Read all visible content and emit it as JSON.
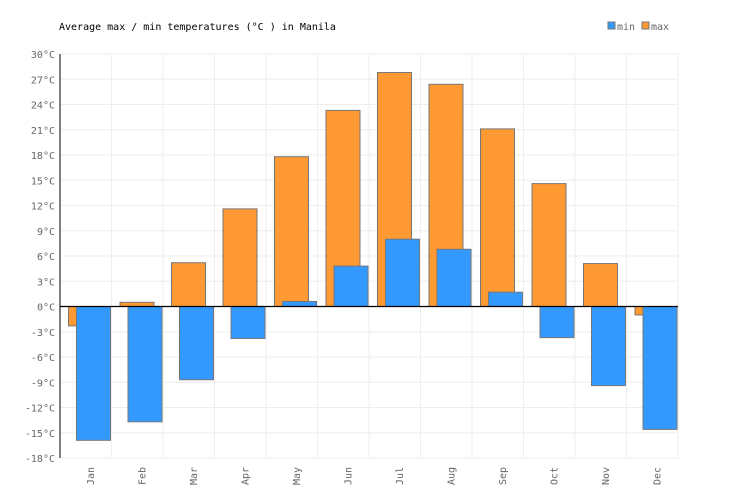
{
  "chart_data": {
    "type": "bar",
    "title": "Average max / min temperatures (°C ) in Manila",
    "categories": [
      "Jan",
      "Feb",
      "Mar",
      "Apr",
      "May",
      "Jun",
      "Jul",
      "Aug",
      "Sep",
      "Oct",
      "Nov",
      "Dec"
    ],
    "series": [
      {
        "name": "min",
        "color": "#3399ff",
        "values": [
          -15.9,
          -13.7,
          -8.7,
          -3.8,
          0.6,
          4.8,
          8.0,
          6.8,
          1.7,
          -3.7,
          -9.4,
          -14.6
        ]
      },
      {
        "name": "max",
        "color": "#ff9933",
        "values": [
          -2.3,
          0.5,
          5.2,
          11.6,
          17.8,
          23.3,
          27.8,
          26.4,
          21.1,
          14.6,
          5.1,
          -1.0
        ]
      }
    ],
    "ylim": [
      -18,
      30
    ],
    "yticks": [
      30,
      27,
      24,
      21,
      18,
      15,
      12,
      9,
      6,
      3,
      0,
      -3,
      -6,
      -9,
      -12,
      -15,
      -18
    ],
    "ytick_suffix": "°C",
    "grid": true,
    "legend": "top-right"
  }
}
